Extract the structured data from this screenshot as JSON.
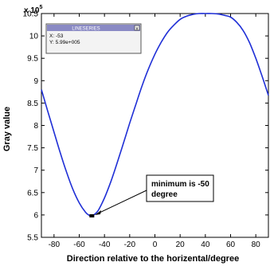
{
  "chart_data": {
    "type": "line",
    "title": "",
    "xlabel": "Direction relative to the horizental/degree",
    "ylabel": "Gray value",
    "y_multiplier_base": "x 10",
    "y_multiplier_exponent": "5",
    "xlim": [
      -90,
      90
    ],
    "ylim": [
      5.5,
      10.5
    ],
    "xticks": [
      -80,
      -60,
      -40,
      -20,
      0,
      20,
      40,
      60,
      80
    ],
    "yticks": [
      5.5,
      6,
      6.5,
      7,
      7.5,
      8,
      8.5,
      9,
      9.5,
      10,
      10.5
    ],
    "grid": false,
    "series": [
      {
        "color": "#1f2fd6",
        "x": [
          -90,
          -85,
          -80,
          -75,
          -70,
          -65,
          -60,
          -55,
          -52,
          -50,
          -48,
          -45,
          -40,
          -35,
          -30,
          -25,
          -20,
          -15,
          -10,
          -5,
          0,
          5,
          10,
          15,
          20,
          25,
          30,
          35,
          40,
          45,
          50,
          55,
          60,
          65,
          70,
          75,
          80,
          85,
          90
        ],
        "y": [
          8.8,
          8.32,
          7.85,
          7.38,
          6.95,
          6.57,
          6.27,
          6.06,
          5.99,
          5.98,
          6.01,
          6.1,
          6.38,
          6.74,
          7.16,
          7.6,
          8.05,
          8.48,
          8.9,
          9.27,
          9.59,
          9.86,
          10.08,
          10.24,
          10.37,
          10.44,
          10.48,
          10.5,
          10.5,
          10.5,
          10.49,
          10.46,
          10.42,
          10.3,
          10.12,
          9.85,
          9.5,
          9.1,
          8.67
        ]
      }
    ],
    "marker": {
      "x": -50,
      "y": 5.98
    },
    "datatip": {
      "title": "LINESERIES",
      "x_text": "X: -53",
      "y_text": "Y: 5.99e+005"
    },
    "annotation": {
      "line1": "minimum is -50",
      "line2": "degree"
    }
  }
}
